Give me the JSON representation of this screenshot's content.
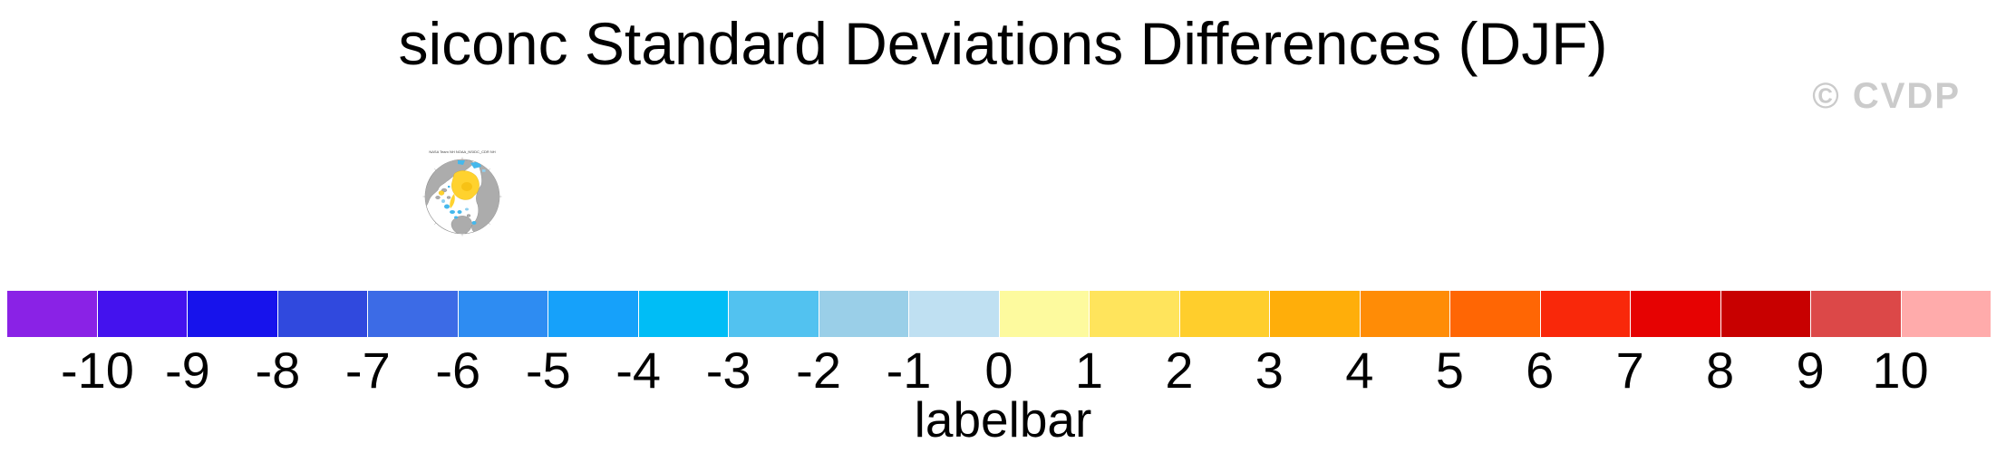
{
  "title": "siconc Standard Deviations Differences (DJF)",
  "watermark": "© CVDP",
  "inset_map": {
    "title": "NASA Team NH NOAA_NSIDC_CDR NH"
  },
  "chart_data": {
    "type": "labelbar",
    "title": "siconc Standard Deviations Differences (DJF)",
    "xlabel": "labelbar",
    "tick_labels": [
      "-10",
      "-9",
      "-8",
      "-7",
      "-6",
      "-5",
      "-4",
      "-3",
      "-2",
      "-1",
      "0",
      "1",
      "2",
      "3",
      "4",
      "5",
      "6",
      "7",
      "8",
      "9",
      "10"
    ],
    "tick_values": [
      -10,
      -9,
      -8,
      -7,
      -6,
      -5,
      -4,
      -3,
      -2,
      -1,
      0,
      1,
      2,
      3,
      4,
      5,
      6,
      7,
      8,
      9,
      10
    ],
    "colors": [
      "#8A22E6",
      "#4412EE",
      "#1713EC",
      "#3049DE",
      "#3C6BE6",
      "#2E8CF2",
      "#16A1FA",
      "#00BDF6",
      "#52C2F0",
      "#9ACFE8",
      "#BFE0F2",
      "#FDFA9E",
      "#FFE45C",
      "#FFCE2C",
      "#FFAE0A",
      "#FF8C06",
      "#FF6604",
      "#F9280A",
      "#E60202",
      "#C80000",
      "#DC4848",
      "#FFABAB"
    ],
    "legend_position": "bottom",
    "watermark": "© CVDP",
    "watermark_color": "#cbcbcb",
    "inset_map": {
      "type": "polar-stereographic-thumbnail",
      "title": "NASA Team NH NOAA_NSIDC_CDR NH",
      "land_color": "#ACACAC",
      "ocean_color": "#FFFFFF",
      "positive_anomaly_color": "#FFD22E",
      "negative_anomaly_color": "#45B8EC"
    }
  }
}
